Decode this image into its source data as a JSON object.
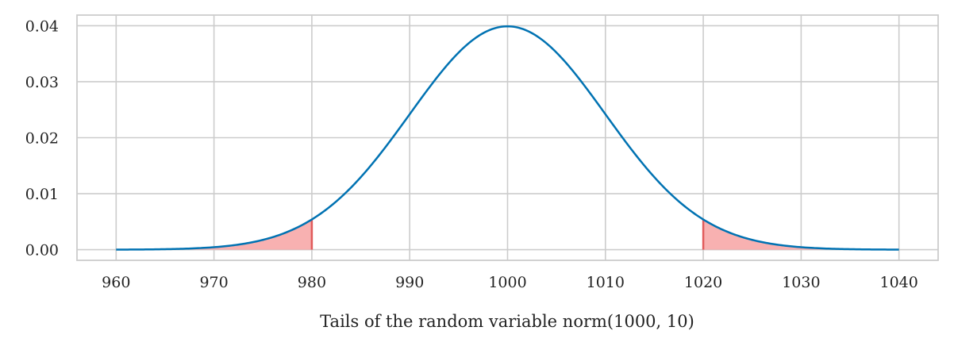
{
  "chart_data": {
    "type": "line",
    "title": "",
    "xlabel": "Tails of the random variable norm(1000, 10)",
    "ylabel": "",
    "distribution": {
      "name": "norm",
      "mean": 1000,
      "std": 10
    },
    "xlim": [
      956,
      1044
    ],
    "ylim": [
      -0.0019,
      0.0419
    ],
    "x_ticks": [
      960,
      970,
      980,
      990,
      1000,
      1010,
      1020,
      1030,
      1040
    ],
    "y_ticks": [
      0.0,
      0.01,
      0.02,
      0.03,
      0.04
    ],
    "y_tick_labels": [
      "0.00",
      "0.01",
      "0.02",
      "0.03",
      "0.04"
    ],
    "grid": true,
    "legend": "none",
    "series": [
      {
        "x_range": [
          960,
          1040
        ],
        "peak": {
          "x": 1000,
          "y": 0.0399
        },
        "color": "#0072b2"
      }
    ],
    "shaded_tails": [
      {
        "x_range": [
          960,
          980
        ],
        "boundary_y": 0.0054
      },
      {
        "x_range": [
          1020,
          1040
        ],
        "boundary_y": 0.0054
      }
    ],
    "colors": {
      "line": "#0072b2",
      "tail_fill": "#f7a8a8",
      "tail_edge": "#e15b5b",
      "grid": "#cccccc",
      "frame": "#cccccc",
      "text": "#222222"
    }
  }
}
